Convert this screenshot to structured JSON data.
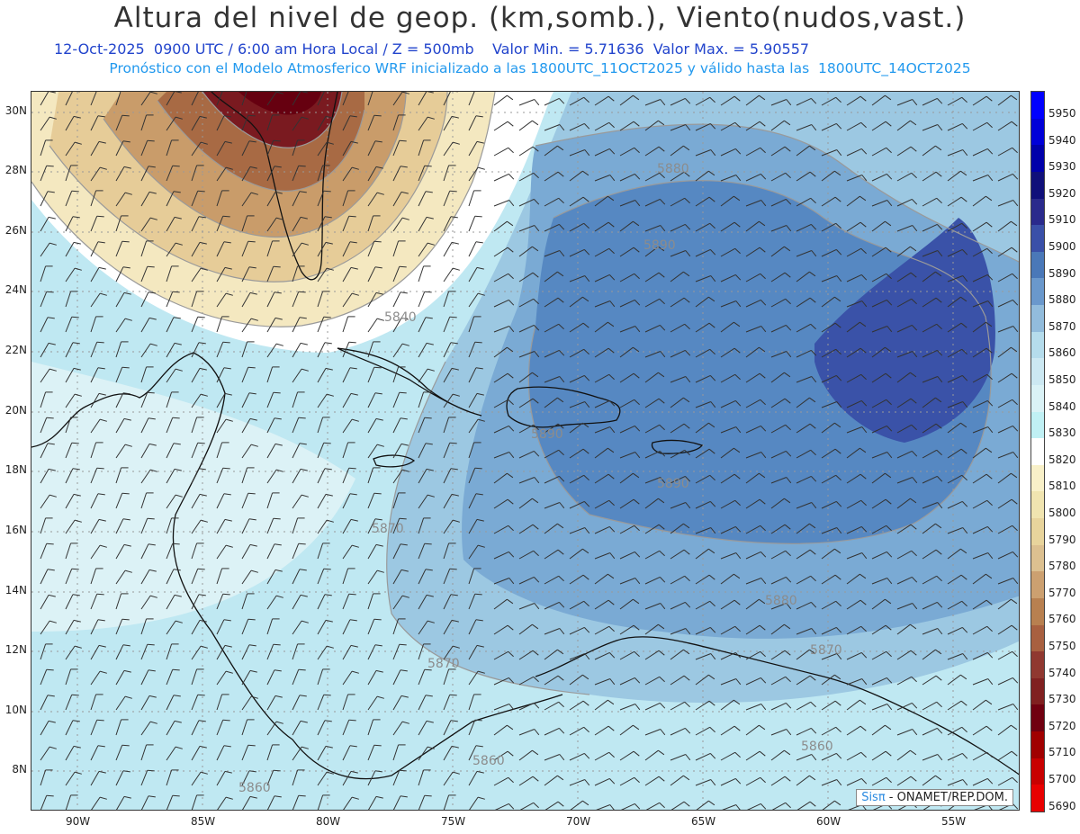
{
  "title": "Altura del nivel de geop. (km,somb.), Viento(nudos,vast.)",
  "subtitle1": "12-Oct-2025  0900 UTC / 6:00 am Hora Local / Z = 500mb    Valor Min. = 5.71636  Valor Max. = 5.90557",
  "subtitle2": "Pronóstico con el Modelo Atmosferico WRF inicializado a las 1800UTC_11OCT2025 y válido hasta las  1800UTC_14OCT2025",
  "lat_labels": [
    "30N",
    "28N",
    "26N",
    "24N",
    "22N",
    "20N",
    "18N",
    "16N",
    "14N",
    "12N",
    "10N",
    "8N"
  ],
  "lon_labels": [
    "90W",
    "85W",
    "80W",
    "75W",
    "70W",
    "65W",
    "60W",
    "55W"
  ],
  "colorbar": {
    "labels": [
      "5950",
      "5940",
      "5930",
      "5920",
      "5910",
      "5900",
      "5890",
      "5880",
      "5870",
      "5860",
      "5850",
      "5840",
      "5830",
      "5820",
      "5810",
      "5800",
      "5790",
      "5780",
      "5770",
      "5760",
      "5750",
      "5740",
      "5730",
      "5720",
      "5710",
      "5700",
      "5690"
    ],
    "colors": [
      "#0000ff",
      "#0000d8",
      "#0000aa",
      "#10107a",
      "#2a2a8c",
      "#3a50a8",
      "#4a78b8",
      "#6a98cc",
      "#92bcdc",
      "#b5dcec",
      "#cce8f2",
      "#daf2f6",
      "#c0f0f4",
      "#ffffff",
      "#f8f0c8",
      "#f0e4b0",
      "#e8d49c",
      "#dcc090",
      "#cca070",
      "#b88050",
      "#a86040",
      "#903830",
      "#802020",
      "#700010",
      "#a00000",
      "#c80000",
      "#e80000"
    ]
  },
  "contour_labels": [
    "5880",
    "5890",
    "5840",
    "5890",
    "5890",
    "5870",
    "5870",
    "5880",
    "5870",
    "5860",
    "5860",
    "5860"
  ],
  "credit": {
    "brand": "Sisπ",
    "text": " - ONAMET/REP.DOM."
  }
}
